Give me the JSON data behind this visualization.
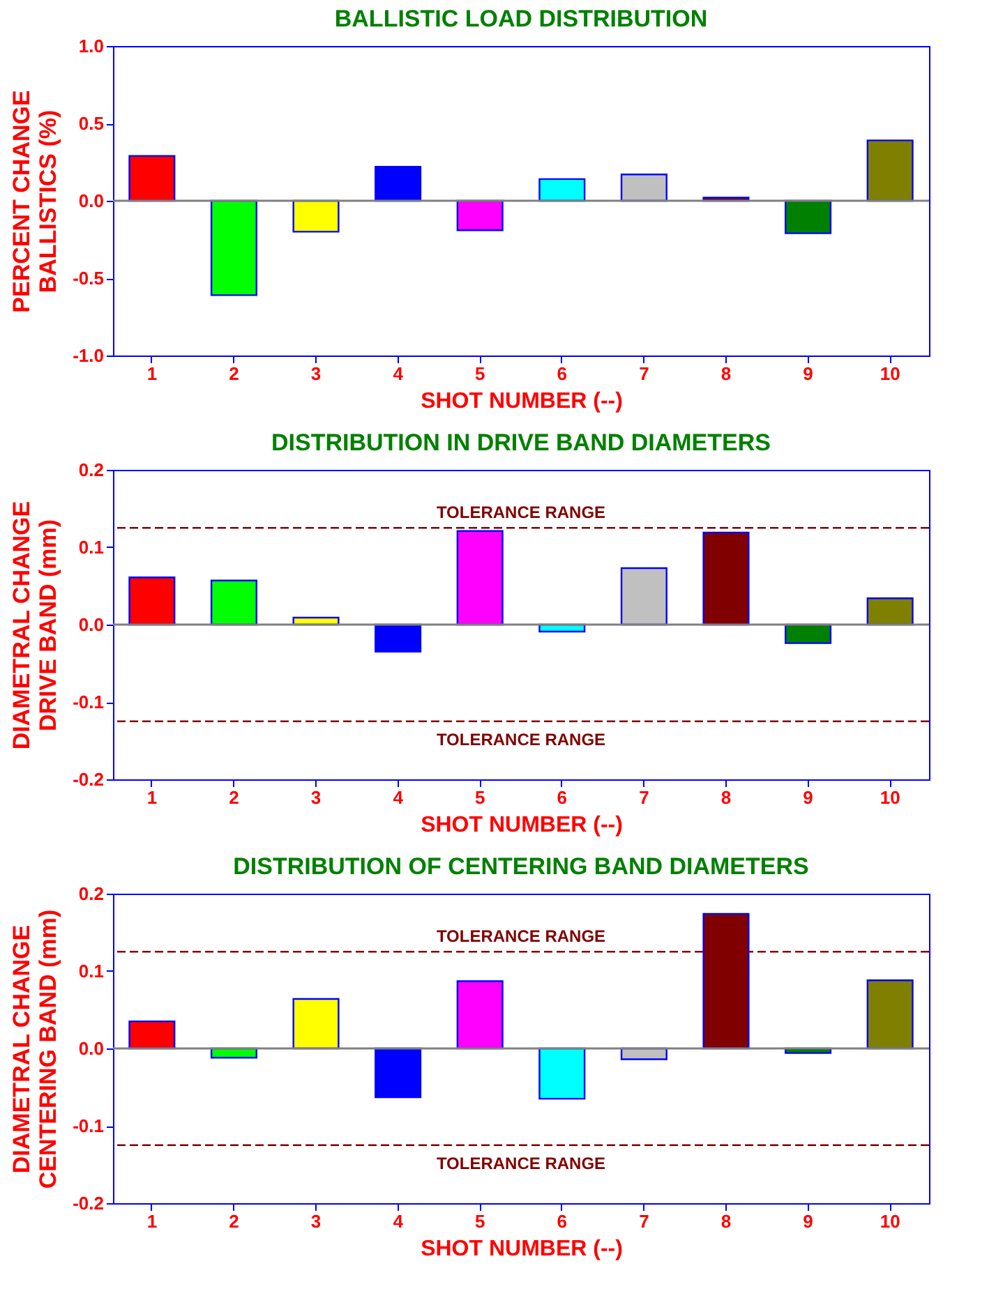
{
  "chart_data": [
    {
      "type": "bar",
      "title": "BALLISTIC LOAD DISTRIBUTION",
      "xlabel": "SHOT NUMBER (--)",
      "ylabel": "PERCENT CHANGE\nBALLISTICS (%)",
      "categories": [
        "1",
        "2",
        "3",
        "4",
        "5",
        "6",
        "7",
        "8",
        "9",
        "10"
      ],
      "values": [
        0.29,
        -0.61,
        -0.2,
        0.22,
        -0.19,
        0.14,
        0.17,
        0.02,
        -0.21,
        0.39
      ],
      "colors": [
        "#ff0000",
        "#00ff00",
        "#ffff00",
        "#0000ff",
        "#ff00ff",
        "#00ffff",
        "#c0c0c0",
        "#800000",
        "#008000",
        "#808000"
      ],
      "ylim": [
        -1,
        1
      ],
      "yticks": [
        {
          "value": -1,
          "label": "-1.0"
        },
        {
          "value": -0.5,
          "label": "-0.5"
        },
        {
          "value": 0,
          "label": "0.0"
        },
        {
          "value": 0.5,
          "label": "0.5"
        },
        {
          "value": 1,
          "label": "1.0"
        }
      ]
    },
    {
      "type": "bar",
      "title": "DISTRIBUTION IN DRIVE BAND DIAMETERS",
      "xlabel": "SHOT NUMBER (--)",
      "ylabel": "DIAMETRAL CHANGE\nDRIVE BAND (mm)",
      "categories": [
        "1",
        "2",
        "3",
        "4",
        "5",
        "6",
        "7",
        "8",
        "9",
        "10"
      ],
      "values": [
        0.061,
        0.057,
        0.009,
        -0.035,
        0.121,
        -0.009,
        0.073,
        0.119,
        -0.024,
        0.034
      ],
      "colors": [
        "#ff0000",
        "#00ff00",
        "#ffff00",
        "#0000ff",
        "#ff00ff",
        "#00ffff",
        "#c0c0c0",
        "#800000",
        "#008000",
        "#808000"
      ],
      "ylim": [
        -0.2,
        0.2
      ],
      "yticks": [
        {
          "value": -0.2,
          "label": "-0.2"
        },
        {
          "value": -0.1,
          "label": "-0.1"
        },
        {
          "value": 0,
          "label": "0.0"
        },
        {
          "value": 0.1,
          "label": "0.1"
        },
        {
          "value": 0.2,
          "label": "0.2"
        }
      ],
      "ref_lines": [
        {
          "axis": "y",
          "value": 0.125,
          "label": "TOLERANCE RANGE",
          "color": "#800000",
          "line_style": "dashed"
        },
        {
          "axis": "y",
          "value": -0.125,
          "label": "TOLERANCE RANGE",
          "color": "#800000",
          "line_style": "dashed"
        }
      ]
    },
    {
      "type": "bar",
      "title": "DISTRIBUTION OF CENTERING BAND DIAMETERS",
      "xlabel": "SHOT NUMBER (--)",
      "ylabel": "DIAMETRAL CHANGE\nCENTERING BAND (mm)",
      "categories": [
        "1",
        "2",
        "3",
        "4",
        "5",
        "6",
        "7",
        "8",
        "9",
        "10"
      ],
      "values": [
        0.035,
        -0.012,
        0.064,
        -0.063,
        0.087,
        -0.065,
        -0.014,
        0.174,
        -0.006,
        0.088
      ],
      "colors": [
        "#ff0000",
        "#00ff00",
        "#ffff00",
        "#0000ff",
        "#ff00ff",
        "#00ffff",
        "#c0c0c0",
        "#800000",
        "#008000",
        "#808000"
      ],
      "ylim": [
        -0.2,
        0.2
      ],
      "yticks": [
        {
          "value": -0.2,
          "label": "-0.2"
        },
        {
          "value": -0.1,
          "label": "-0.1"
        },
        {
          "value": 0,
          "label": "0.0"
        },
        {
          "value": 0.1,
          "label": "0.1"
        },
        {
          "value": 0.2,
          "label": "0.2"
        }
      ],
      "ref_lines": [
        {
          "axis": "y",
          "value": 0.125,
          "label": "TOLERANCE RANGE",
          "color": "#800000",
          "line_style": "dashed"
        },
        {
          "axis": "y",
          "value": -0.125,
          "label": "TOLERANCE RANGE",
          "color": "#800000",
          "line_style": "dashed"
        }
      ]
    }
  ]
}
